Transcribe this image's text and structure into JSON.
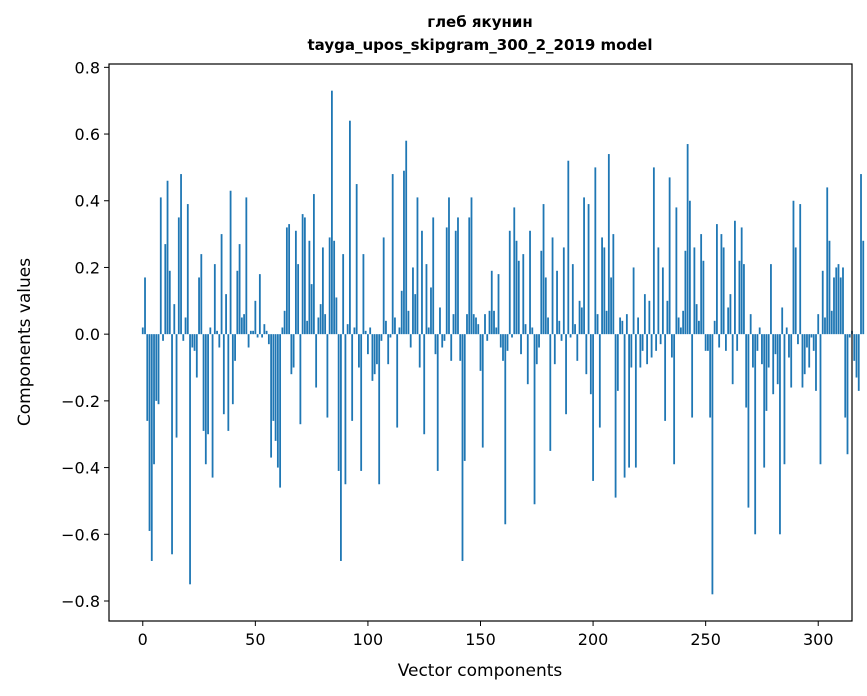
{
  "chart_data": {
    "type": "bar",
    "title": "глеб якунин",
    "subtitle": "tayga_upos_skipgram_300_2_2019 model",
    "xlabel": "Vector components",
    "ylabel": "Components values",
    "xlim": [
      -15,
      315
    ],
    "ylim": [
      -0.86,
      0.81
    ],
    "xticks": [
      0,
      50,
      100,
      150,
      200,
      250,
      300
    ],
    "xtick_labels": [
      "0",
      "50",
      "100",
      "150",
      "200",
      "250",
      "300"
    ],
    "yticks": [
      -0.8,
      -0.6,
      -0.4,
      -0.2,
      0.0,
      0.2,
      0.4,
      0.6,
      0.8
    ],
    "ytick_labels": [
      "−0.8",
      "−0.6",
      "−0.4",
      "−0.2",
      "0.0",
      "0.2",
      "0.4",
      "0.6",
      "0.8"
    ],
    "grid": false,
    "bar_color": "#1f77b4",
    "values": [
      0.02,
      0.17,
      -0.26,
      -0.59,
      -0.68,
      -0.39,
      -0.2,
      -0.21,
      0.41,
      -0.02,
      0.27,
      0.46,
      0.19,
      -0.66,
      0.09,
      -0.31,
      0.35,
      0.48,
      -0.02,
      0.05,
      0.39,
      -0.75,
      -0.04,
      -0.05,
      -0.13,
      0.17,
      0.24,
      -0.29,
      -0.39,
      -0.3,
      0.02,
      -0.43,
      0.21,
      0.01,
      -0.04,
      0.3,
      -0.24,
      0.12,
      -0.29,
      0.43,
      -0.21,
      -0.08,
      0.19,
      0.27,
      0.05,
      0.06,
      0.41,
      -0.04,
      0.01,
      0.01,
      0.1,
      -0.01,
      0.18,
      -0.01,
      0.03,
      0.01,
      -0.03,
      -0.37,
      -0.26,
      -0.32,
      -0.4,
      -0.46,
      0.02,
      0.07,
      0.32,
      0.33,
      -0.12,
      -0.1,
      0.31,
      0.21,
      -0.27,
      0.36,
      0.35,
      0.04,
      0.28,
      0.15,
      0.42,
      -0.16,
      0.05,
      0.09,
      0.26,
      0.06,
      -0.25,
      0.29,
      0.73,
      0.28,
      0.11,
      -0.41,
      -0.68,
      0.24,
      -0.45,
      0.03,
      0.64,
      -0.26,
      0.02,
      0.45,
      -0.1,
      -0.41,
      0.24,
      0.01,
      -0.06,
      0.02,
      -0.14,
      -0.12,
      -0.09,
      -0.45,
      -0.02,
      0.29,
      0.04,
      -0.09,
      -0.01,
      0.48,
      0.05,
      -0.28,
      0.02,
      0.13,
      0.49,
      0.58,
      0.07,
      -0.04,
      0.2,
      0.12,
      0.41,
      -0.1,
      0.31,
      -0.3,
      0.21,
      0.02,
      0.14,
      0.35,
      -0.06,
      -0.41,
      0.08,
      -0.04,
      -0.02,
      0.32,
      0.41,
      -0.08,
      0.06,
      0.31,
      0.35,
      -0.08,
      -0.68,
      -0.38,
      0.06,
      0.35,
      0.41,
      0.06,
      0.05,
      0.03,
      -0.11,
      -0.34,
      0.06,
      -0.02,
      0.07,
      0.19,
      0.07,
      0.02,
      0.18,
      -0.04,
      -0.08,
      -0.57,
      -0.05,
      0.31,
      -0.01,
      0.38,
      0.28,
      0.22,
      -0.06,
      0.24,
      0.03,
      -0.15,
      0.31,
      0.02,
      -0.51,
      -0.09,
      -0.04,
      0.25,
      0.39,
      0.17,
      0.05,
      -0.35,
      0.29,
      -0.09,
      0.19,
      0.04,
      -0.02,
      0.26,
      -0.24,
      0.52,
      -0.01,
      0.21,
      0.03,
      -0.08,
      0.1,
      0.08,
      0.41,
      -0.12,
      0.39,
      -0.18,
      -0.44,
      0.5,
      0.06,
      -0.28,
      0.29,
      0.26,
      0.07,
      0.54,
      0.17,
      0.3,
      -0.49,
      -0.17,
      0.05,
      0.04,
      -0.43,
      0.06,
      -0.4,
      -0.1,
      0.2,
      -0.4,
      0.05,
      -0.1,
      -0.05,
      0.12,
      -0.09,
      0.1,
      -0.07,
      0.5,
      -0.05,
      0.26,
      -0.03,
      0.2,
      -0.26,
      0.1,
      0.47,
      -0.07,
      -0.39,
      0.38,
      0.05,
      0.02,
      0.07,
      0.25,
      0.57,
      0.4,
      -0.25,
      0.26,
      0.09,
      0.04,
      0.3,
      0.22,
      -0.05,
      -0.05,
      -0.25,
      -0.78,
      0.04,
      0.33,
      -0.04,
      0.3,
      0.26,
      -0.05,
      0.08,
      0.12,
      -0.15,
      0.34,
      -0.05,
      0.22,
      0.32,
      0.21,
      -0.22,
      -0.52,
      0.06,
      -0.1,
      -0.6,
      -0.05,
      0.02,
      -0.09,
      -0.4,
      -0.23,
      -0.1,
      0.21,
      -0.18,
      -0.06,
      -0.15,
      -0.6,
      0.08,
      -0.39,
      0.02,
      -0.07,
      -0.16,
      0.4,
      0.26,
      -0.03,
      0.39,
      -0.16,
      -0.12,
      -0.04,
      -0.1,
      -0.01,
      -0.05,
      -0.17,
      0.06,
      -0.39,
      0.19,
      0.05,
      0.44,
      0.28,
      0.07,
      0.17,
      0.2,
      0.21,
      0.17,
      0.2,
      -0.25,
      -0.36,
      -0.01,
      0.01,
      -0.08,
      -0.13,
      -0.17,
      0.48,
      0.28
    ]
  }
}
